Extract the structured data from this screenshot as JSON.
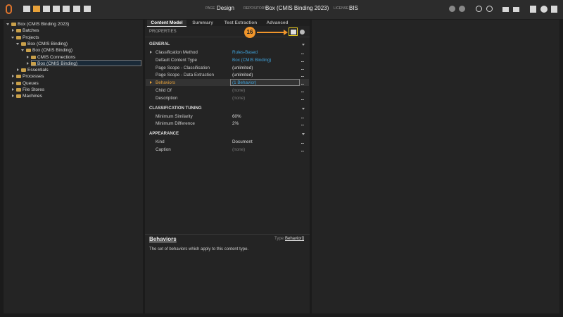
{
  "header": {
    "page_label": "PAGE",
    "page": "Design",
    "repository_label": "REPOSITORY",
    "repository": "Box (CMIS Binding 2023)",
    "license_label": "LICENSE",
    "license": "BIS"
  },
  "tree": {
    "selected": 6,
    "items": [
      {
        "label": "Box (CMIS Binding 2023)",
        "level": 0,
        "expanded": true
      },
      {
        "label": "Batches",
        "level": 1,
        "expanded": false
      },
      {
        "label": "Projects",
        "level": 1,
        "expanded": true
      },
      {
        "label": "Box (CMIS Binding)",
        "level": 2,
        "expanded": true
      },
      {
        "label": "Box (CMIS Binding)",
        "level": 3,
        "expanded": true
      },
      {
        "label": "CMIS Connections",
        "level": 4,
        "expanded": false
      },
      {
        "label": "Box (CMIS Binding)",
        "level": 4,
        "expanded": false
      },
      {
        "label": "Essentials",
        "level": 2,
        "expanded": false
      },
      {
        "label": "Processes",
        "level": 1,
        "expanded": false
      },
      {
        "label": "Queues",
        "level": 1,
        "expanded": false
      },
      {
        "label": "File Stores",
        "level": 1,
        "expanded": false
      },
      {
        "label": "Machines",
        "level": 1,
        "expanded": false
      }
    ]
  },
  "tabs": {
    "active": 0,
    "items": [
      "Content Model",
      "Summary",
      "Test Extraction",
      "Advanced"
    ]
  },
  "properties": {
    "title": "PROPERTIES",
    "callout": "16",
    "sections": [
      {
        "title": "GENERAL",
        "rows": [
          {
            "name": "Classification Method",
            "value": "Rules-Based",
            "color": "#3fa3dc",
            "expandable": true
          },
          {
            "name": "Default Content Type",
            "value": "Box (CMIS Binding)",
            "color": "#3fa3dc"
          },
          {
            "name": "Page Scope - Classification",
            "value": "(unlimited)",
            "color": "#dddddd"
          },
          {
            "name": "Page Scope - Data Extraction",
            "value": "(unlimited)",
            "color": "#dddddd"
          },
          {
            "name": "Behaviors",
            "value": "(1 Behavior)",
            "color": "#3fa3dc",
            "expandable": true,
            "selected": true
          },
          {
            "name": "Child Of",
            "value": "(none)",
            "color": "#777777"
          },
          {
            "name": "Description",
            "value": "(none)",
            "color": "#777777"
          }
        ]
      },
      {
        "title": "CLASSIFICATION TUNING",
        "rows": [
          {
            "name": "Minimum Similarity",
            "value": "60%",
            "color": "#dddddd"
          },
          {
            "name": "Minimum Difference",
            "value": "2%",
            "color": "#dddddd"
          }
        ]
      },
      {
        "title": "APPEARANCE",
        "rows": [
          {
            "name": "Kind",
            "value": "Document",
            "color": "#dddddd"
          },
          {
            "name": "Caption",
            "value": "(none)",
            "color": "#777777"
          }
        ]
      }
    ]
  },
  "help": {
    "title": "Behaviors",
    "type_label": "Type:",
    "type": "Behavior[]",
    "description": "The set of behaviors which apply to this content type."
  }
}
